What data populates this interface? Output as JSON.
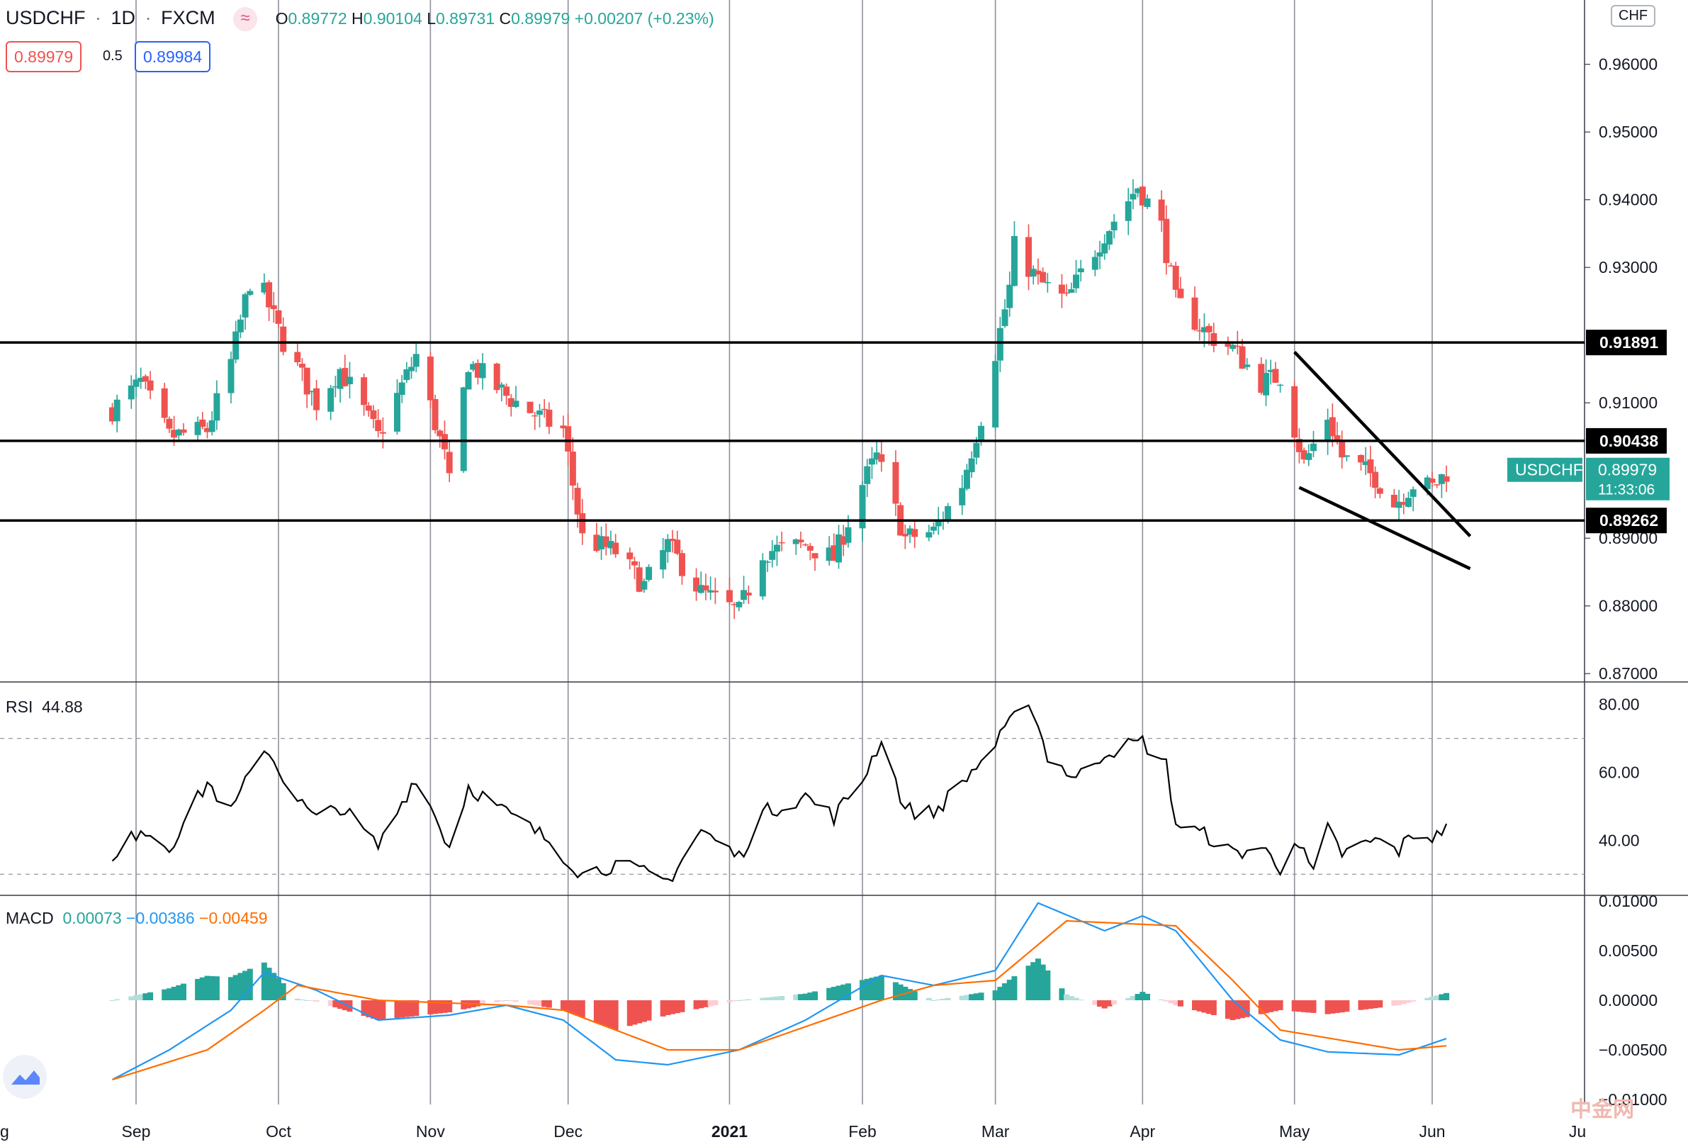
{
  "header": {
    "symbol": "USDCHF",
    "interval": "1D",
    "source": "FXCM",
    "icon": "approx-icon",
    "open_label": "O",
    "open": "0.89772",
    "high_label": "H",
    "high": "0.90104",
    "low_label": "L",
    "low": "0.89731",
    "close_label": "C",
    "close": "0.89979",
    "change": "+0.00207 (+0.23%)",
    "sell_price": "0.89979",
    "spread": "0.5",
    "buy_price": "0.89984"
  },
  "currency_button": "CHF",
  "price_axis": {
    "ticks": [
      "0.96000",
      "0.95000",
      "0.94000",
      "0.93000",
      "0.91000",
      "0.89000",
      "0.88000",
      "0.87000"
    ],
    "levels": [
      "0.91891",
      "0.90438",
      "0.89262"
    ],
    "current_label": "USDCHF",
    "current_price": "0.89979",
    "countdown": "11:33:06"
  },
  "time_axis": [
    "g",
    "Sep",
    "Oct",
    "Nov",
    "Dec",
    "2021",
    "Feb",
    "Mar",
    "Apr",
    "May",
    "Jun",
    "Ju"
  ],
  "rsi": {
    "label": "RSI",
    "value": "44.88",
    "ticks": [
      "80.00",
      "60.00",
      "40.00"
    ]
  },
  "macd": {
    "label": "MACD",
    "hist": "0.00073",
    "macd": "−0.00386",
    "signal": "−0.00459",
    "ticks": [
      "0.01000",
      "0.00500",
      "0.00000",
      "−0.00500",
      "−0.01000"
    ]
  },
  "colors": {
    "up": "#26a69a",
    "down": "#ef5350",
    "macd": "#2196f3",
    "signal": "#ff6d00",
    "rsi": "#000000"
  },
  "chart_data": [
    {
      "type": "candlestick",
      "title": "USDCHF, 1D, FXCM",
      "x_range": [
        "2020-08-27",
        "2021-06-04"
      ],
      "ylim": [
        0.8695,
        0.9695
      ],
      "grid": true,
      "horizontal_levels": [
        0.91891,
        0.90438,
        0.89262
      ],
      "trendlines": [
        {
          "from": [
            "2021-05-03",
            0.9175
          ],
          "to": [
            "2021-06-09",
            0.8903
          ]
        },
        {
          "from": [
            "2021-05-04",
            0.8975
          ],
          "to": [
            "2021-06-09",
            0.8855
          ]
        }
      ],
      "anchors": [
        {
          "date": "2020-08-27",
          "close": 0.909
        },
        {
          "date": "2020-09-02",
          "close": 0.913
        },
        {
          "date": "2020-09-08",
          "close": 0.905
        },
        {
          "date": "2020-09-16",
          "close": 0.906
        },
        {
          "date": "2020-09-21",
          "close": 0.916
        },
        {
          "date": "2020-09-25",
          "close": 0.928
        },
        {
          "date": "2020-09-28",
          "close": 0.926
        },
        {
          "date": "2020-10-02",
          "close": 0.919
        },
        {
          "date": "2020-10-09",
          "close": 0.91
        },
        {
          "date": "2020-10-14",
          "close": 0.915
        },
        {
          "date": "2020-10-22",
          "close": 0.905
        },
        {
          "date": "2020-10-30",
          "close": 0.917
        },
        {
          "date": "2020-11-05",
          "close": 0.902
        },
        {
          "date": "2020-11-06",
          "close": 0.898
        },
        {
          "date": "2020-11-10",
          "close": 0.916
        },
        {
          "date": "2020-11-18",
          "close": 0.911
        },
        {
          "date": "2020-11-27",
          "close": 0.907
        },
        {
          "date": "2020-11-30",
          "close": 0.906
        },
        {
          "date": "2020-12-04",
          "close": 0.89
        },
        {
          "date": "2020-12-11",
          "close": 0.888
        },
        {
          "date": "2020-12-17",
          "close": 0.883
        },
        {
          "date": "2020-12-22",
          "close": 0.889
        },
        {
          "date": "2020-12-29",
          "close": 0.882
        },
        {
          "date": "2021-01-06",
          "close": 0.879
        },
        {
          "date": "2021-01-11",
          "close": 0.888
        },
        {
          "date": "2021-01-20",
          "close": 0.889
        },
        {
          "date": "2021-01-26",
          "close": 0.887
        },
        {
          "date": "2021-02-01",
          "close": 0.898
        },
        {
          "date": "2021-02-04",
          "close": 0.902
        },
        {
          "date": "2021-02-10",
          "close": 0.89
        },
        {
          "date": "2021-02-16",
          "close": 0.891
        },
        {
          "date": "2021-02-22",
          "close": 0.898
        },
        {
          "date": "2021-02-26",
          "close": 0.908
        },
        {
          "date": "2021-03-04",
          "close": 0.927
        },
        {
          "date": "2021-03-05",
          "close": 0.933
        },
        {
          "date": "2021-03-10",
          "close": 0.928
        },
        {
          "date": "2021-03-16",
          "close": 0.925
        },
        {
          "date": "2021-03-19",
          "close": 0.929
        },
        {
          "date": "2021-03-24",
          "close": 0.935
        },
        {
          "date": "2021-03-31",
          "close": 0.942
        },
        {
          "date": "2021-04-05",
          "close": 0.936
        },
        {
          "date": "2021-04-08",
          "close": 0.925
        },
        {
          "date": "2021-04-15",
          "close": 0.92
        },
        {
          "date": "2021-04-20",
          "close": 0.918
        },
        {
          "date": "2021-04-26",
          "close": 0.913
        },
        {
          "date": "2021-04-30",
          "close": 0.914
        },
        {
          "date": "2021-05-05",
          "close": 0.901
        },
        {
          "date": "2021-05-10",
          "close": 0.908
        },
        {
          "date": "2021-05-13",
          "close": 0.902
        },
        {
          "date": "2021-05-20",
          "close": 0.899
        },
        {
          "date": "2021-05-24",
          "close": 0.895
        },
        {
          "date": "2021-05-28",
          "close": 0.898
        },
        {
          "date": "2021-06-01",
          "close": 0.8975
        },
        {
          "date": "2021-06-04",
          "close": 0.89979
        }
      ]
    },
    {
      "type": "line",
      "title": "RSI",
      "ylim": [
        24,
        86
      ],
      "reference_lines": [
        70,
        30
      ],
      "anchors": [
        {
          "date": "2020-08-27",
          "value": 33
        },
        {
          "date": "2020-09-02",
          "value": 44
        },
        {
          "date": "2020-09-08",
          "value": 38
        },
        {
          "date": "2020-09-16",
          "value": 57
        },
        {
          "date": "2020-09-21",
          "value": 48
        },
        {
          "date": "2020-09-28",
          "value": 68
        },
        {
          "date": "2020-10-05",
          "value": 52
        },
        {
          "date": "2020-10-09",
          "value": 46
        },
        {
          "date": "2020-10-14",
          "value": 50
        },
        {
          "date": "2020-10-22",
          "value": 38
        },
        {
          "date": "2020-10-30",
          "value": 59
        },
        {
          "date": "2020-11-06",
          "value": 38
        },
        {
          "date": "2020-11-10",
          "value": 56
        },
        {
          "date": "2020-11-18",
          "value": 48
        },
        {
          "date": "2020-11-27",
          "value": 40
        },
        {
          "date": "2020-12-04",
          "value": 30
        },
        {
          "date": "2020-12-11",
          "value": 33
        },
        {
          "date": "2020-12-22",
          "value": 28
        },
        {
          "date": "2020-12-29",
          "value": 43
        },
        {
          "date": "2021-01-06",
          "value": 35
        },
        {
          "date": "2021-01-11",
          "value": 48
        },
        {
          "date": "2021-01-20",
          "value": 53
        },
        {
          "date": "2021-01-26",
          "value": 47
        },
        {
          "date": "2021-02-01",
          "value": 58
        },
        {
          "date": "2021-02-05",
          "value": 70
        },
        {
          "date": "2021-02-10",
          "value": 49
        },
        {
          "date": "2021-02-16",
          "value": 48
        },
        {
          "date": "2021-02-22",
          "value": 57
        },
        {
          "date": "2021-03-01",
          "value": 68
        },
        {
          "date": "2021-03-08",
          "value": 82
        },
        {
          "date": "2021-03-12",
          "value": 65
        },
        {
          "date": "2021-03-18",
          "value": 58
        },
        {
          "date": "2021-03-24",
          "value": 66
        },
        {
          "date": "2021-04-01",
          "value": 69
        },
        {
          "date": "2021-04-06",
          "value": 62
        },
        {
          "date": "2021-04-08",
          "value": 45
        },
        {
          "date": "2021-04-15",
          "value": 41
        },
        {
          "date": "2021-04-20",
          "value": 36
        },
        {
          "date": "2021-04-26",
          "value": 38
        },
        {
          "date": "2021-04-30",
          "value": 32
        },
        {
          "date": "2021-05-03",
          "value": 41
        },
        {
          "date": "2021-05-07",
          "value": 30
        },
        {
          "date": "2021-05-10",
          "value": 43
        },
        {
          "date": "2021-05-13",
          "value": 36
        },
        {
          "date": "2021-05-20",
          "value": 40
        },
        {
          "date": "2021-05-25",
          "value": 37
        },
        {
          "date": "2021-05-28",
          "value": 42
        },
        {
          "date": "2021-06-02",
          "value": 41
        },
        {
          "date": "2021-06-04",
          "value": 44.88
        }
      ]
    },
    {
      "type": "line",
      "title": "MACD",
      "ylim": [
        -0.0105,
        0.0105
      ],
      "series": [
        {
          "name": "MACD",
          "anchors": [
            {
              "date": "2020-08-27",
              "value": -0.008
            },
            {
              "date": "2020-09-08",
              "value": -0.005
            },
            {
              "date": "2020-09-21",
              "value": -0.001
            },
            {
              "date": "2020-09-28",
              "value": 0.0028
            },
            {
              "date": "2020-10-09",
              "value": 0.001
            },
            {
              "date": "2020-10-22",
              "value": -0.002
            },
            {
              "date": "2020-11-06",
              "value": -0.0015
            },
            {
              "date": "2020-11-18",
              "value": -0.0005
            },
            {
              "date": "2020-11-30",
              "value": -0.002
            },
            {
              "date": "2020-12-11",
              "value": -0.006
            },
            {
              "date": "2020-12-22",
              "value": -0.0065
            },
            {
              "date": "2021-01-06",
              "value": -0.005
            },
            {
              "date": "2021-01-20",
              "value": -0.002
            },
            {
              "date": "2021-02-05",
              "value": 0.0025
            },
            {
              "date": "2021-02-16",
              "value": 0.0015
            },
            {
              "date": "2021-03-01",
              "value": 0.003
            },
            {
              "date": "2021-03-10",
              "value": 0.0098
            },
            {
              "date": "2021-03-24",
              "value": 0.007
            },
            {
              "date": "2021-04-01",
              "value": 0.0085
            },
            {
              "date": "2021-04-08",
              "value": 0.007
            },
            {
              "date": "2021-04-20",
              "value": 0.0
            },
            {
              "date": "2021-04-30",
              "value": -0.004
            },
            {
              "date": "2021-05-10",
              "value": -0.0052
            },
            {
              "date": "2021-05-25",
              "value": -0.0055
            },
            {
              "date": "2021-06-04",
              "value": -0.00386
            }
          ]
        },
        {
          "name": "Signal",
          "anchors": [
            {
              "date": "2020-08-27",
              "value": -0.008
            },
            {
              "date": "2020-09-16",
              "value": -0.005
            },
            {
              "date": "2020-09-28",
              "value": -0.001
            },
            {
              "date": "2020-10-05",
              "value": 0.0015
            },
            {
              "date": "2020-10-22",
              "value": 0.0
            },
            {
              "date": "2020-11-18",
              "value": -0.0005
            },
            {
              "date": "2020-11-30",
              "value": -0.001
            },
            {
              "date": "2020-12-22",
              "value": -0.005
            },
            {
              "date": "2021-01-06",
              "value": -0.005
            },
            {
              "date": "2021-02-05",
              "value": 0.0
            },
            {
              "date": "2021-02-16",
              "value": 0.0015
            },
            {
              "date": "2021-03-01",
              "value": 0.002
            },
            {
              "date": "2021-03-16",
              "value": 0.008
            },
            {
              "date": "2021-04-08",
              "value": 0.0075
            },
            {
              "date": "2021-04-20",
              "value": 0.002
            },
            {
              "date": "2021-04-30",
              "value": -0.003
            },
            {
              "date": "2021-05-25",
              "value": -0.005
            },
            {
              "date": "2021-06-04",
              "value": -0.00459
            }
          ]
        }
      ]
    }
  ]
}
